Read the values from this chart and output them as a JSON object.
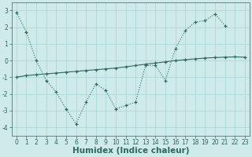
{
  "title": "",
  "xlabel": "Humidex (Indice chaleur)",
  "line1_x": [
    0,
    1,
    2,
    3,
    4,
    5,
    6,
    7,
    8,
    9,
    10,
    11,
    12,
    13,
    14,
    15,
    16,
    17,
    18,
    19,
    20,
    21,
    22,
    23
  ],
  "line1_y": [
    2.9,
    1.7,
    0.0,
    -1.2,
    -1.9,
    -2.9,
    -3.8,
    -2.5,
    -1.4,
    -1.8,
    -2.9,
    -2.7,
    -2.5,
    -0.3,
    -0.3,
    -1.2,
    0.7,
    1.8,
    2.3,
    2.4,
    2.8,
    2.1,
    null,
    null
  ],
  "line2_x": [
    0,
    1,
    2,
    3,
    4,
    5,
    6,
    7,
    8,
    9,
    10,
    11,
    12,
    13,
    14,
    15,
    16,
    17,
    18,
    19,
    20,
    21,
    22,
    23
  ],
  "line2_y": [
    -1.0,
    -0.9,
    -0.85,
    -0.8,
    -0.75,
    -0.7,
    -0.65,
    -0.6,
    -0.55,
    -0.5,
    -0.45,
    -0.38,
    -0.3,
    -0.22,
    -0.15,
    -0.08,
    0.0,
    0.05,
    0.1,
    0.15,
    0.18,
    0.2,
    0.22,
    0.2
  ],
  "line_color": "#2a6b5e",
  "bg_color": "#ceeaea",
  "grid_color": "#a8d4d4",
  "ylim": [
    -4.5,
    3.5
  ],
  "xlim": [
    -0.5,
    23.5
  ],
  "yticks": [
    -4,
    -3,
    -2,
    -1,
    0,
    1,
    2,
    3
  ],
  "xticks": [
    0,
    1,
    2,
    3,
    4,
    5,
    6,
    7,
    8,
    9,
    10,
    11,
    12,
    13,
    14,
    15,
    16,
    17,
    18,
    19,
    20,
    21,
    22,
    23
  ],
  "tick_fontsize": 5.5,
  "label_fontsize": 7.5
}
